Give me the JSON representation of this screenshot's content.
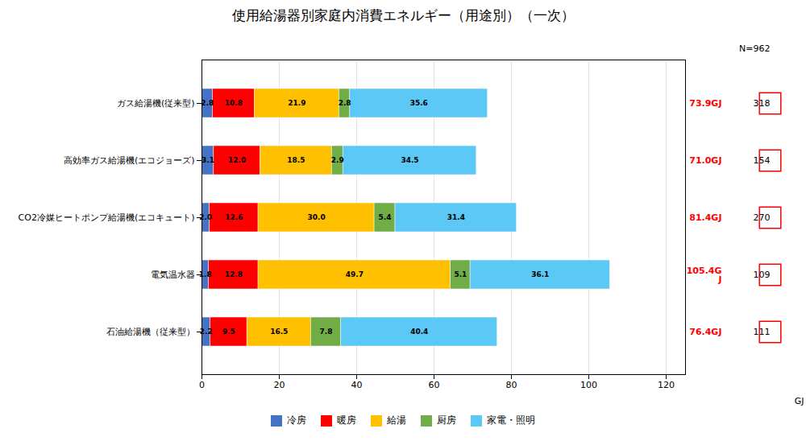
{
  "chart_data": {
    "type": "bar",
    "orientation": "horizontal",
    "stacked": true,
    "title": "使用給湯器別家庭内消費エネルギー（用途別）（一次）",
    "xlabel": "GJ",
    "categories": [
      "ガス給湯機(従来型)",
      "高効率ガス給湯機(エコジョーズ)",
      "CO2冷媒ヒートポンプ給湯機(エコキュート)",
      "電気温水器",
      "石油給湯機（従来型）"
    ],
    "series": [
      {
        "name": "冷房",
        "color": "#4472C4",
        "values": [
          2.8,
          3.1,
          2.0,
          1.8,
          2.2
        ],
        "value_labels": [
          "2.8",
          "3.1",
          "2.0",
          "1.8",
          "2.2"
        ]
      },
      {
        "name": "暖房",
        "color": "#FF0000",
        "values": [
          10.8,
          12.0,
          12.6,
          12.8,
          9.5
        ],
        "value_labels": [
          "10.8",
          "12.0",
          "12.6",
          "12.8",
          "9.5"
        ]
      },
      {
        "name": "給湯",
        "color": "#FFC000",
        "values": [
          21.9,
          18.5,
          30.0,
          49.7,
          16.5
        ],
        "value_labels": [
          "21.9",
          "18.5",
          "30.0",
          "49.7",
          "16.5"
        ]
      },
      {
        "name": "厨房",
        "color": "#70AD47",
        "values": [
          2.8,
          2.9,
          5.4,
          5.1,
          7.8
        ],
        "value_labels": [
          "2.8",
          "2.9",
          "5.4",
          "5.1",
          "7.8"
        ]
      },
      {
        "name": "家電・照明",
        "color": "#5BC8F5",
        "values": [
          35.6,
          34.5,
          31.4,
          36.1,
          40.4
        ],
        "value_labels": [
          "35.6",
          "34.5",
          "31.4",
          "36.1",
          "40.4"
        ]
      }
    ],
    "annotations": {
      "totals": [
        "73.9GJ",
        "71.0GJ",
        "81.4GJ",
        "105.4G\nJ",
        "76.4GJ"
      ],
      "totals_color": "#FF0000",
      "counts": [
        "318",
        "154",
        "270",
        "109",
        "111"
      ],
      "counts_box_color": "#FF0000",
      "n_label": "N=962"
    },
    "xlim": [
      0,
      125
    ],
    "xticks": [
      0,
      20,
      40,
      60,
      80,
      100,
      120
    ],
    "grid": true,
    "legend": "bottom",
    "data_labels": true
  }
}
